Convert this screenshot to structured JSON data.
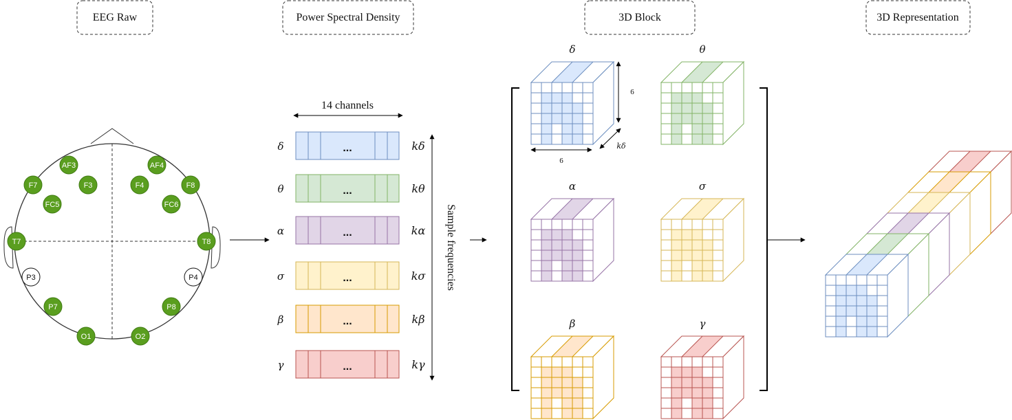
{
  "stages": [
    {
      "title": "EEG Raw"
    },
    {
      "title": "Power Spectral Density"
    },
    {
      "title": "3D Block"
    },
    {
      "title": "3D Representation"
    }
  ],
  "eeg": {
    "active_color": "#5a9e1f",
    "active_stroke": "#3f7a12",
    "electrodes": [
      {
        "label": "AF3",
        "active": true
      },
      {
        "label": "AF4",
        "active": true
      },
      {
        "label": "F7",
        "active": true
      },
      {
        "label": "F3",
        "active": true
      },
      {
        "label": "F4",
        "active": true
      },
      {
        "label": "F8",
        "active": true
      },
      {
        "label": "FC5",
        "active": true
      },
      {
        "label": "FC6",
        "active": true
      },
      {
        "label": "T7",
        "active": true
      },
      {
        "label": "T8",
        "active": true
      },
      {
        "label": "P3",
        "active": false
      },
      {
        "label": "P4",
        "active": false
      },
      {
        "label": "P7",
        "active": true
      },
      {
        "label": "P8",
        "active": true
      },
      {
        "label": "O1",
        "active": true
      },
      {
        "label": "O2",
        "active": true
      }
    ]
  },
  "psd": {
    "channels_label": "14 channels",
    "axis_label": "Sample frequencies",
    "ellipsis": "...",
    "bands": [
      {
        "symbol": "δ",
        "k_label": "kδ",
        "fill": "#dae8fc",
        "stroke": "#6c8ebf"
      },
      {
        "symbol": "θ",
        "k_label": "kθ",
        "fill": "#d5e8d4",
        "stroke": "#82b366"
      },
      {
        "symbol": "α",
        "k_label": "kα",
        "fill": "#e1d5e7",
        "stroke": "#9673a6"
      },
      {
        "symbol": "σ",
        "k_label": "kσ",
        "fill": "#fff2cc",
        "stroke": "#d6b656"
      },
      {
        "symbol": "β",
        "k_label": "kβ",
        "fill": "#ffe6cc",
        "stroke": "#d79b00"
      },
      {
        "symbol": "γ",
        "k_label": "kγ",
        "fill": "#f8cecc",
        "stroke": "#b85450"
      }
    ]
  },
  "block": {
    "height_label": "6",
    "width_label": "6",
    "depth_label": "kδ"
  }
}
